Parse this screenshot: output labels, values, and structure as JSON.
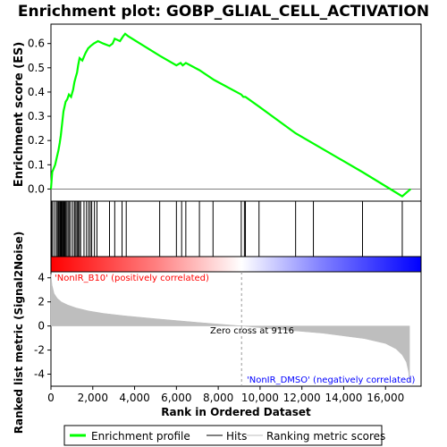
{
  "chart_data": {
    "type": "line",
    "title": "Enrichment plot: GOBP_GLIAL_CELL_ACTIVATION",
    "top_panel": {
      "ylabel": "Enrichment score (ES)",
      "ylim": [
        -0.05,
        0.68
      ],
      "yticks": [
        0.0,
        0.1,
        0.2,
        0.3,
        0.4,
        0.5,
        0.6
      ],
      "ytick_labels": [
        "0.0",
        "0.1",
        "0.2",
        "0.3",
        "0.4",
        "0.5",
        "0.6"
      ],
      "series": [
        {
          "name": "Enrichment profile",
          "color": "#00ff00",
          "x": [
            0,
            60,
            200,
            280,
            360,
            420,
            470,
            520,
            560,
            600,
            650,
            700,
            780,
            860,
            960,
            1060,
            1120,
            1180,
            1250,
            1300,
            1370,
            1500,
            1650,
            1780,
            1900,
            2050,
            2250,
            2500,
            2800,
            2950,
            3050,
            3300,
            3450,
            3550,
            3700,
            5200,
            6000,
            6200,
            6300,
            6450,
            7100,
            7800,
            9100,
            9200,
            9250,
            9300,
            9950,
            11700,
            12500,
            14900,
            16800,
            17200
          ],
          "y": [
            0.0,
            0.07,
            0.1,
            0.13,
            0.16,
            0.19,
            0.22,
            0.26,
            0.29,
            0.32,
            0.34,
            0.36,
            0.37,
            0.39,
            0.38,
            0.41,
            0.44,
            0.46,
            0.48,
            0.51,
            0.54,
            0.53,
            0.56,
            0.58,
            0.59,
            0.6,
            0.61,
            0.6,
            0.59,
            0.6,
            0.62,
            0.61,
            0.63,
            0.64,
            0.63,
            0.55,
            0.51,
            0.52,
            0.51,
            0.52,
            0.49,
            0.45,
            0.39,
            0.38,
            0.38,
            0.38,
            0.34,
            0.23,
            0.19,
            0.07,
            -0.03,
            0.0
          ]
        }
      ]
    },
    "hits": [
      30,
      80,
      170,
      260,
      310,
      360,
      400,
      450,
      480,
      510,
      550,
      590,
      620,
      660,
      700,
      760,
      820,
      880,
      950,
      1050,
      1130,
      1190,
      1250,
      1300,
      1360,
      1420,
      1580,
      1700,
      1800,
      1880,
      1950,
      2080,
      2200,
      2800,
      3050,
      3400,
      3600,
      5200,
      6000,
      6250,
      6450,
      7100,
      7750,
      9100,
      9250,
      9300,
      9950,
      11700,
      12550,
      14900,
      16800
    ],
    "middle_panel": {
      "color_scale_stops": [
        "#ff0000",
        "#ff7f80",
        "#ffffff",
        "#7f7fff",
        "#0000ff"
      ]
    },
    "bottom_panel": {
      "ylabel": "Ranked list metric (Signal2Noise)",
      "ylim": [
        -5,
        4.5
      ],
      "yticks": [
        -4,
        -2,
        0,
        2,
        4
      ],
      "ytick_labels": [
        "-4",
        "-2",
        "0",
        "2",
        "4"
      ],
      "zero_cross_label": "Zero cross at 9116",
      "zero_cross": 9116,
      "series": [
        {
          "name": "Ranking metric scores",
          "color": "#bebebe",
          "x": [
            0,
            50,
            150,
            300,
            500,
            800,
            1200,
            1800,
            2500,
            3500,
            5000,
            7000,
            9116,
            11000,
            13000,
            15000,
            16000,
            16500,
            16800,
            17000,
            17100,
            17150
          ],
          "y": [
            4.3,
            3.4,
            2.7,
            2.3,
            2.0,
            1.75,
            1.5,
            1.25,
            1.05,
            0.85,
            0.6,
            0.3,
            0.0,
            -0.3,
            -0.6,
            -1.05,
            -1.45,
            -1.9,
            -2.4,
            -3.0,
            -3.8,
            -4.6
          ]
        }
      ],
      "pos_label": "'NonIR_B10' (positively correlated)",
      "neg_label": "'NonIR_DMSO' (negatively correlated)",
      "pos_color": "#ff0000",
      "neg_color": "#0000ff"
    },
    "xlabel": "Rank in Ordered Dataset",
    "xlim": [
      0,
      17700
    ],
    "xticks": [
      0,
      2000,
      4000,
      6000,
      8000,
      10000,
      12000,
      14000,
      16000
    ],
    "xtick_labels": [
      "0",
      "2,000",
      "4,000",
      "6,000",
      "8,000",
      "10,000",
      "12,000",
      "14,000",
      "16,000"
    ],
    "legend": {
      "items": [
        "Enrichment profile",
        "Hits",
        "Ranking metric scores"
      ],
      "colors": [
        "#00ff00",
        "#000000",
        "#bebebe"
      ]
    }
  }
}
